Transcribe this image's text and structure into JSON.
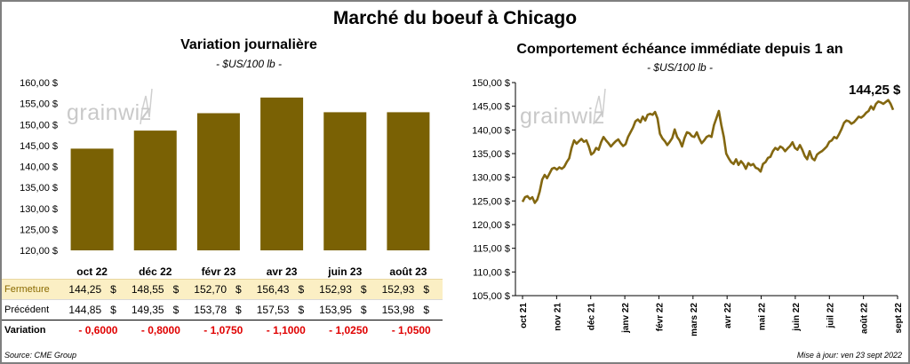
{
  "title": "Marché du boeuf à Chicago",
  "logo_text": "grainwiz",
  "left_panel": {
    "title": "Variation  journalière",
    "subtitle": "- $US/100 lb -"
  },
  "right_panel": {
    "title": "Comportement  échéance immédiate depuis 1 an",
    "subtitle": "- $US/100 lb -",
    "last_value_label": "144,25 $"
  },
  "table": {
    "rows": [
      {
        "label": "Fermeture",
        "values": [
          "144,25",
          "148,55",
          "152,70",
          "156,43",
          "152,93",
          "152,93"
        ],
        "currency": "$"
      },
      {
        "label": "Précédent",
        "values": [
          "144,85",
          "149,35",
          "153,78",
          "157,53",
          "153,95",
          "153,98"
        ],
        "currency": "$"
      },
      {
        "label": "Variation",
        "values": [
          "- 0,6000",
          "- 0,8000",
          "- 1,0750",
          "- 1,1000",
          "- 1,0250",
          "- 1,0500"
        ]
      }
    ]
  },
  "footer": {
    "source": "Source: CME Group",
    "updated": "Mise à jour: ven 23 sept 2022"
  },
  "colors": {
    "bar": "#7a6104",
    "line": "#836710",
    "closing_row_bg": "#fbefc4",
    "negative": "#e00000",
    "border": "#7f7f7f"
  },
  "chart_data": [
    {
      "type": "bar",
      "categories": [
        "oct 22",
        "déc 22",
        "févr 23",
        "avr 23",
        "juin 23",
        "août 23"
      ],
      "values": [
        144.25,
        148.55,
        152.7,
        156.43,
        152.93,
        152.93
      ],
      "ylim": [
        120,
        160
      ],
      "yticks": [
        120,
        125,
        130,
        135,
        140,
        145,
        150,
        155,
        160
      ],
      "ytick_labels": [
        "120,00 $",
        "125,00 $",
        "130,00 $",
        "135,00 $",
        "140,00 $",
        "145,00 $",
        "150,00 $",
        "155,00 $",
        "160,00 $"
      ],
      "grid": false
    },
    {
      "type": "line",
      "xlabels": [
        "oct 21",
        "nov 21",
        "déc 21",
        "janv 22",
        "févr 22",
        "mars 22",
        "avr 22",
        "mai 22",
        "juin 22",
        "juil 22",
        "août 22",
        "sept 22"
      ],
      "ylim": [
        105,
        150
      ],
      "yticks": [
        105,
        110,
        115,
        120,
        125,
        130,
        135,
        140,
        145,
        150
      ],
      "ytick_labels": [
        "105,00 $",
        "110,00 $",
        "115,00 $",
        "120,00 $",
        "125,00 $",
        "130,00 $",
        "135,00 $",
        "140,00 $",
        "145,00 $",
        "150,00 $"
      ],
      "grid": false,
      "series": [
        {
          "values": [
            124.8,
            125.8,
            126.0,
            125.4,
            125.8,
            124.6,
            125.3,
            127.0,
            129.5,
            130.5,
            129.8,
            130.8,
            131.8,
            132.0,
            131.6,
            132.1,
            131.8,
            132.2,
            133.2,
            134.0,
            136.2,
            137.8,
            137.1,
            137.6,
            138.1,
            137.5,
            137.8,
            136.5,
            134.8,
            135.2,
            136.2,
            135.8,
            137.4,
            138.5,
            137.8,
            137.2,
            136.5,
            137.1,
            137.6,
            138.0,
            137.2,
            136.6,
            137.0,
            138.5,
            139.5,
            140.5,
            141.8,
            142.2,
            141.6,
            142.8,
            142.0,
            143.2,
            143.4,
            143.2,
            143.8,
            142.4,
            139.2,
            138.2,
            137.6,
            136.8,
            137.5,
            138.3,
            140.1,
            138.5,
            137.8,
            136.5,
            138.3,
            139.5,
            139.3,
            138.7,
            138.5,
            139.5,
            138.2,
            137.2,
            137.8,
            138.5,
            138.8,
            138.5,
            141.0,
            142.5,
            144.0,
            141.0,
            138.5,
            135.0,
            134.0,
            133.2,
            132.8,
            133.8,
            132.6,
            133.4,
            132.8,
            131.8,
            133.0,
            132.5,
            132.8,
            132.0,
            131.8,
            131.2,
            132.8,
            133.2,
            134.1,
            134.3,
            135.5,
            136.2,
            135.8,
            136.5,
            136.2,
            135.5,
            136.1,
            136.6,
            137.4,
            136.2,
            135.8,
            136.8,
            135.8,
            134.5,
            133.8,
            135.5,
            134.0,
            133.6,
            134.8,
            135.2,
            135.5,
            136.0,
            136.5,
            137.5,
            137.8,
            138.5,
            138.2,
            139.1,
            140.2,
            141.5,
            142.0,
            141.8,
            141.3,
            141.6,
            142.2,
            142.8,
            142.6,
            143.0,
            143.6,
            144.0,
            145.0,
            144.3,
            145.5,
            146.0,
            145.8,
            145.5,
            145.9,
            146.3,
            145.5,
            144.25
          ]
        }
      ]
    }
  ]
}
